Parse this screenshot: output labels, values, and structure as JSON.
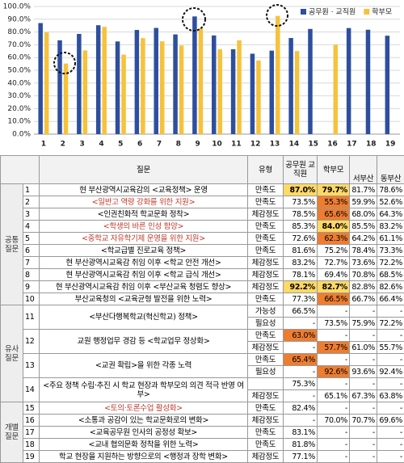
{
  "chart_data": {
    "type": "bar",
    "categories": [
      "1",
      "2",
      "3",
      "4",
      "5",
      "6",
      "7",
      "8",
      "9",
      "10",
      "11",
      "12",
      "13",
      "14",
      "15",
      "16",
      "17",
      "18",
      "19"
    ],
    "series": [
      {
        "name": "공무원 · 교직원",
        "color": "#2e4f9e",
        "values": [
          87.0,
          73.5,
          78.5,
          85.3,
          72.6,
          81.6,
          83.2,
          78.1,
          92.2,
          77.3,
          66.5,
          63.0,
          65.4,
          75.3,
          82.4,
          null,
          83.1,
          81.8,
          77.1
        ]
      },
      {
        "name": "학부모",
        "color": "#f7c23b",
        "values": [
          79.7,
          55.3,
          65.6,
          84.0,
          62.3,
          75.2,
          72.7,
          69.4,
          82.7,
          66.5,
          73.5,
          57.7,
          92.6,
          65.1,
          null,
          70.0,
          null,
          null,
          null
        ]
      }
    ],
    "ylim": [
      0,
      100
    ],
    "yticks": [
      {
        "value": 0,
        "label": "0.0%"
      },
      {
        "value": 10,
        "label": "10.0%"
      },
      {
        "value": 20,
        "label": "20.0%"
      },
      {
        "value": 30,
        "label": "30.0%"
      },
      {
        "value": 40,
        "label": "40.0%"
      },
      {
        "value": 50,
        "label": "50.0%"
      },
      {
        "value": 60,
        "label": "60.0%"
      },
      {
        "value": 70,
        "label": "70.0%"
      },
      {
        "value": 80,
        "label": "80.0%"
      },
      {
        "value": 90,
        "label": "90.0%"
      },
      {
        "value": 100,
        "label": "100.0%"
      }
    ],
    "grid": true,
    "legend": "upper right"
  },
  "table": {
    "header": [
      "질문",
      "유형",
      "공무원 교직원",
      "학부모",
      "서부산",
      "동부산"
    ],
    "groups": [
      {
        "label": "공통 질문",
        "rows": [
          {
            "no": 1,
            "question": "현 부산광역시교육감의 <교육정책> 운영",
            "lines": [
              {
                "type": "만족도",
                "cells": [
                  "87.0%",
                  "79.7%",
                  "81.7%",
                  "78.6%"
                ]
              }
            ]
          },
          {
            "no": 2,
            "question": "<일반고 역량 강화를 위한 지원>",
            "lines": [
              {
                "type": "만족도",
                "cells": [
                  "73.5%",
                  "55.3%",
                  "59.9%",
                  "52.6%"
                ]
              }
            ]
          },
          {
            "no": 3,
            "question": "<인권친화적 학교문화 정착>",
            "lines": [
              {
                "type": "체감정도",
                "cells": [
                  "78.5%",
                  "65.6%",
                  "68.0%",
                  "64.3%"
                ]
              }
            ]
          },
          {
            "no": 4,
            "question": "<학생의 바른 인성 함양>",
            "lines": [
              {
                "type": "만족도",
                "cells": [
                  "85.3%",
                  "84.0%",
                  "85.5%",
                  "83.2%"
                ]
              }
            ]
          },
          {
            "no": 5,
            "question": "<중학교 자유학기제 운영을 위한 지원>",
            "lines": [
              {
                "type": "만족도",
                "cells": [
                  "72.6%",
                  "62.3%",
                  "64.2%",
                  "61.1%"
                ]
              }
            ]
          },
          {
            "no": 6,
            "question": "<학교급별 진로교육 정책>",
            "lines": [
              {
                "type": "만족도",
                "cells": [
                  "81.6%",
                  "75.2%",
                  "78.4%",
                  "73.3%"
                ]
              }
            ]
          },
          {
            "no": 7,
            "question": "현 부산광역시교육감 취임 이후 <학교 안전 개선>",
            "lines": [
              {
                "type": "체감정도",
                "cells": [
                  "83.2%",
                  "72.7%",
                  "73.6%",
                  "72.2%"
                ]
              }
            ]
          },
          {
            "no": 8,
            "question": "현 부산광역시교육감 취임 이후 <학교 급식 개선>",
            "lines": [
              {
                "type": "체감정도",
                "cells": [
                  "78.1%",
                  "69.4%",
                  "70.8%",
                  "68.5%"
                ]
              }
            ]
          },
          {
            "no": 9,
            "question": "현 부산광역시교육감 취임 이후 <부산교육 청렴도 향상>",
            "lines": [
              {
                "type": "체감정도",
                "cells": [
                  "92.2%",
                  "82.7%",
                  "82.8%",
                  "82.6%"
                ]
              }
            ]
          },
          {
            "no": 10,
            "question": "부산교육청의 <교육균형 발전을 위한 노력>",
            "lines": [
              {
                "type": "만족도",
                "cells": [
                  "77.3%",
                  "66.5%",
                  "66.7%",
                  "66.4%"
                ]
              }
            ]
          }
        ]
      },
      {
        "label": "유사 질문",
        "rows": [
          {
            "no": 11,
            "question": "<부산다행복학교(혁신학교) 정책>",
            "lines": [
              {
                "type": "가능성",
                "cells": [
                  "66.5%",
                  "-",
                  "-",
                  "-"
                ]
              },
              {
                "type": "필요성",
                "cells": [
                  "-",
                  "73.5%",
                  "75.9%",
                  "72.2%"
                ]
              }
            ]
          },
          {
            "no": 12,
            "question": "교원 행정업무 경감 등 <학교업무 정상화>",
            "lines": [
              {
                "type": "만족도",
                "cells": [
                  "63.0%",
                  "-",
                  "-",
                  "-"
                ]
              },
              {
                "type": "체감정도",
                "cells": [
                  "-",
                  "57.7%",
                  "61.0%",
                  "55.7%"
                ]
              }
            ]
          },
          {
            "no": 13,
            "question": "<교권 확립>을 위한 각종 노력",
            "lines": [
              {
                "type": "만족도",
                "cells": [
                  "65.4%",
                  "-",
                  "-",
                  "-"
                ]
              },
              {
                "type": "필요성",
                "cells": [
                  "-",
                  "92.6%",
                  "93.6%",
                  "92.4%"
                ]
              }
            ]
          },
          {
            "no": 14,
            "question": "<주요 정책 수립·추진 시 학교 현장과 학부모의 의견 적극 반영 여부>",
            "lines": [
              {
                "type": null,
                "cells": [
                  "75.3%",
                  "-",
                  "-",
                  "-"
                ]
              },
              {
                "type": "체감정도",
                "cells": [
                  "-",
                  "65.1%",
                  "67.3%",
                  "63.8%"
                ]
              }
            ]
          }
        ]
      },
      {
        "label": "개별 질문",
        "rows": [
          {
            "no": 15,
            "question": "<토의·토론수업 활성화>",
            "lines": [
              {
                "type": "만족도",
                "cells": [
                  "82.4%",
                  "-",
                  "-",
                  "-"
                ]
              }
            ]
          },
          {
            "no": 16,
            "question": "<소통과 공감이 있는 학교문화로의 변화>",
            "lines": [
              {
                "type": "체감정도",
                "cells": [
                  "-",
                  "70.0%",
                  "70.7%",
                  "69.6%"
                ]
              }
            ]
          },
          {
            "no": 17,
            "question": "<교육공무원 인사의 공정성 확보>",
            "lines": [
              {
                "type": "만족도",
                "cells": [
                  "83.1%",
                  "-",
                  "-",
                  "-"
                ]
              }
            ]
          },
          {
            "no": 18,
            "question": "<교내 협의문화 정착을 위한 노력>",
            "lines": [
              {
                "type": "만족도",
                "cells": [
                  "81.8%",
                  "-",
                  "-",
                  "-"
                ]
              }
            ]
          },
          {
            "no": 19,
            "question": "학교 현장을 지원하는 방향으로의 <행정과 장학 변화>",
            "lines": [
              {
                "type": "체감정도",
                "cells": [
                  "77.1%",
                  "-",
                  "-",
                  "-"
                ]
              }
            ]
          }
        ]
      }
    ]
  }
}
